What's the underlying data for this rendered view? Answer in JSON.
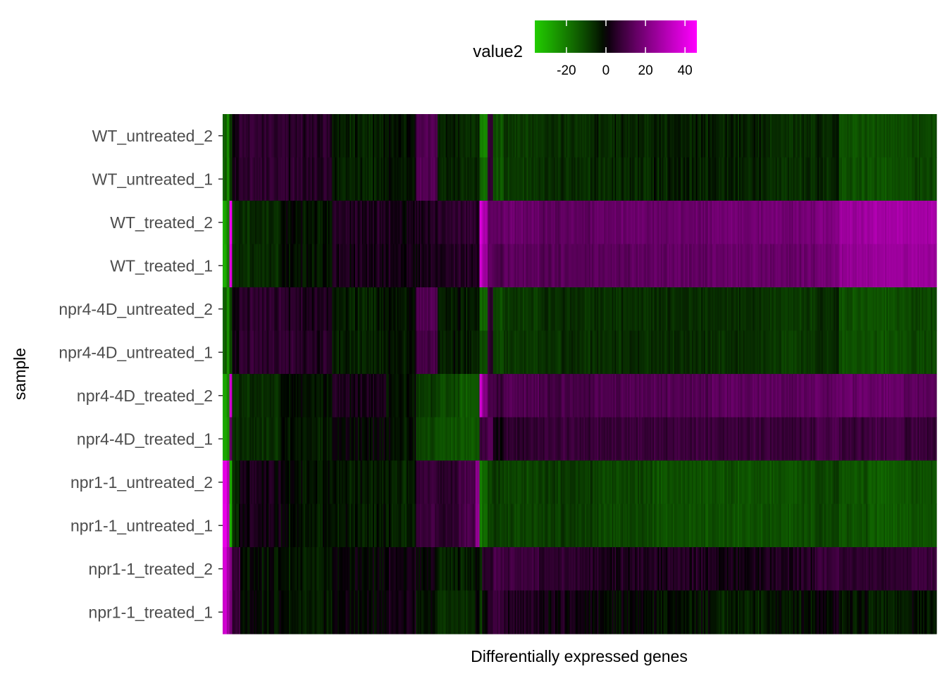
{
  "chart_data": {
    "type": "heatmap",
    "title": "",
    "xlabel": "Differentially expressed genes",
    "ylabel": "sample",
    "x_tick_labels": [],
    "samples": [
      "WT_untreated_2",
      "WT_untreated_1",
      "WT_treated_2",
      "WT_treated_1",
      "npr4-4D_untreated_2",
      "npr4-4D_untreated_1",
      "npr4-4D_treated_2",
      "npr4-4D_treated_1",
      "npr1-1_untreated_2",
      "npr1-1_untreated_1",
      "npr1-1_treated_2",
      "npr1-1_treated_1"
    ],
    "legend": {
      "title": "value2",
      "position": "top",
      "ticks": [
        -20,
        0,
        20,
        40
      ],
      "range": [
        -36,
        46
      ],
      "colors": {
        "low": "#22cc00",
        "mid": "#000000",
        "high": "#ff00ff"
      }
    },
    "gene_blocks": {
      "note_order": "columns ordered left to right; each block lists approximate value2 per sample row (same order as samples)",
      "blocks": [
        {
          "genes": 3,
          "values": [
            -14,
            -14,
            -28,
            -28,
            -14,
            -14,
            -28,
            -28,
            42,
            42,
            38,
            36
          ]
        },
        {
          "genes": 2,
          "values": [
            -24,
            -24,
            -20,
            -20,
            -24,
            -24,
            -22,
            -24,
            30,
            32,
            28,
            26
          ]
        },
        {
          "genes": 2,
          "values": [
            -8,
            -8,
            42,
            40,
            -10,
            -10,
            36,
            16,
            -28,
            -30,
            22,
            20
          ]
        },
        {
          "genes": 6,
          "values": [
            4,
            4,
            -6,
            -6,
            3,
            3,
            -6,
            -6,
            -4,
            -4,
            8,
            8
          ]
        },
        {
          "genes": 30,
          "values": [
            6,
            6,
            -6,
            -6,
            5,
            6,
            -6,
            -6,
            2,
            2,
            -2,
            -2
          ]
        },
        {
          "genes": 38,
          "values": [
            5,
            5,
            -2,
            -2,
            4,
            5,
            -2,
            -3,
            -2,
            -2,
            -3,
            -3
          ]
        },
        {
          "genes": 40,
          "values": [
            -4,
            -4,
            4,
            3,
            -4,
            -4,
            3,
            0,
            -3,
            -3,
            0,
            0
          ]
        },
        {
          "genes": 22,
          "values": [
            -2,
            -2,
            2,
            2,
            -2,
            -2,
            -2,
            -2,
            -4,
            -4,
            2,
            2
          ]
        },
        {
          "genes": 16,
          "values": [
            12,
            12,
            4,
            3,
            12,
            10,
            -8,
            -10,
            8,
            8,
            0,
            -2
          ]
        },
        {
          "genes": 16,
          "values": [
            -4,
            -4,
            6,
            4,
            -3,
            -3,
            -10,
            -12,
            6,
            6,
            -4,
            -6
          ]
        },
        {
          "genes": 12,
          "values": [
            -6,
            -6,
            6,
            4,
            -4,
            -4,
            -14,
            -14,
            10,
            10,
            -4,
            -6
          ]
        },
        {
          "genes": 3,
          "values": [
            -4,
            -4,
            4,
            4,
            -3,
            -3,
            -12,
            -12,
            24,
            24,
            0,
            0
          ]
        },
        {
          "genes": 2,
          "values": [
            -20,
            -14,
            40,
            38,
            -16,
            -12,
            36,
            8,
            -20,
            -20,
            -6,
            -8
          ]
        },
        {
          "genes": 4,
          "values": [
            -20,
            -16,
            30,
            28,
            -14,
            -10,
            22,
            10,
            -14,
            -14,
            6,
            2
          ]
        },
        {
          "genes": 4,
          "values": [
            6,
            6,
            14,
            14,
            5,
            4,
            10,
            12,
            -10,
            -10,
            4,
            4
          ]
        },
        {
          "genes": 8,
          "values": [
            -12,
            -12,
            14,
            12,
            -10,
            -10,
            8,
            2,
            -8,
            -8,
            10,
            8
          ]
        },
        {
          "genes": 26,
          "values": [
            -8,
            -8,
            16,
            14,
            -8,
            -8,
            12,
            6,
            -10,
            -10,
            8,
            4
          ]
        },
        {
          "genes": 40,
          "values": [
            -6,
            -6,
            14,
            13,
            -6,
            -6,
            10,
            8,
            -8,
            -8,
            6,
            2
          ]
        },
        {
          "genes": 44,
          "values": [
            -5,
            -5,
            16,
            14,
            -6,
            -6,
            12,
            8,
            -10,
            -10,
            4,
            0
          ]
        },
        {
          "genes": 44,
          "values": [
            -4,
            -4,
            16,
            15,
            -6,
            -6,
            12,
            8,
            -12,
            -12,
            4,
            -2
          ]
        },
        {
          "genes": 40,
          "values": [
            -4,
            -4,
            18,
            16,
            -6,
            -6,
            14,
            8,
            -12,
            -12,
            2,
            -4
          ]
        },
        {
          "genes": 38,
          "values": [
            -6,
            -6,
            18,
            16,
            -8,
            -8,
            14,
            8,
            -12,
            -12,
            4,
            -2
          ]
        },
        {
          "genes": 16,
          "values": [
            -5,
            -5,
            20,
            18,
            -6,
            -6,
            14,
            10,
            -10,
            -10,
            8,
            0
          ]
        },
        {
          "genes": 22,
          "values": [
            -12,
            -12,
            26,
            24,
            -12,
            -12,
            16,
            8,
            -12,
            -12,
            6,
            -2
          ]
        },
        {
          "genes": 26,
          "values": [
            -12,
            -12,
            28,
            26,
            -12,
            -12,
            16,
            10,
            -14,
            -14,
            6,
            -4
          ]
        },
        {
          "genes": 24,
          "values": [
            -10,
            -10,
            28,
            26,
            -10,
            -10,
            14,
            8,
            -12,
            -12,
            8,
            -2
          ]
        }
      ]
    }
  }
}
